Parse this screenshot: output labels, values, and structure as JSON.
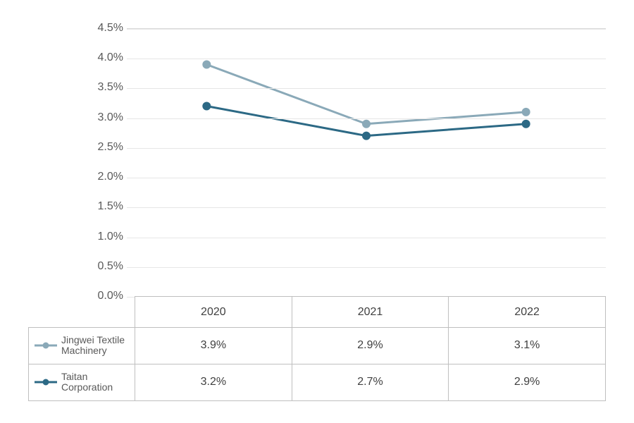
{
  "chart": {
    "type": "line",
    "background_color": "#ffffff",
    "grid_color": "#e6e6e6",
    "axis_color": "#bfbfbf",
    "text_color": "#595959",
    "label_fontsize": 16,
    "y_axis": {
      "min": 0.0,
      "max": 4.5,
      "tick_step": 0.5,
      "ticks": [
        "0.0%",
        "0.5%",
        "1.0%",
        "1.5%",
        "2.0%",
        "2.5%",
        "3.0%",
        "3.5%",
        "4.0%",
        "4.5%"
      ]
    },
    "x_categories": [
      "2020",
      "2021",
      "2022"
    ],
    "series": [
      {
        "name": "Jingwei Textile Machinery",
        "color": "#8aa9b8",
        "line_width": 3,
        "marker_radius": 5.5,
        "values": [
          3.9,
          2.9,
          3.1
        ],
        "display": [
          "3.9%",
          "2.9%",
          "3.1%"
        ]
      },
      {
        "name": "Taitan Corporation",
        "color": "#2c6985",
        "line_width": 3,
        "marker_radius": 5.5,
        "values": [
          3.2,
          2.7,
          2.9
        ],
        "display": [
          "3.2%",
          "2.7%",
          "2.9%"
        ]
      }
    ]
  }
}
